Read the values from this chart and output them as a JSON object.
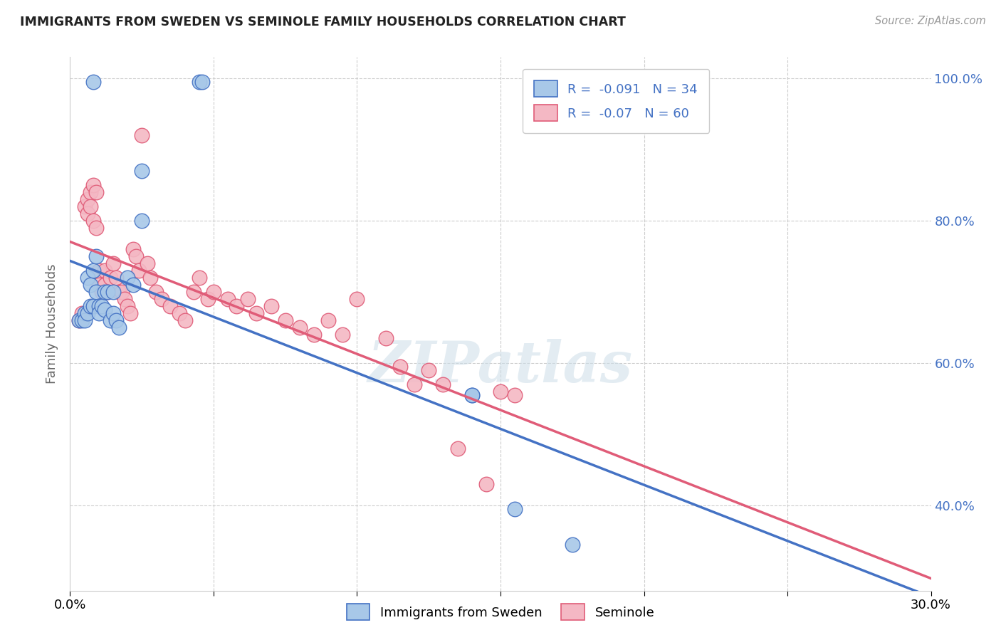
{
  "title": "IMMIGRANTS FROM SWEDEN VS SEMINOLE FAMILY HOUSEHOLDS CORRELATION CHART",
  "source": "Source: ZipAtlas.com",
  "xlabel_blue": "Immigrants from Sweden",
  "xlabel_pink": "Seminole",
  "ylabel": "Family Households",
  "xmin": 0.0,
  "xmax": 0.3,
  "ymin": 0.28,
  "ymax": 1.03,
  "yticks": [
    0.4,
    0.6,
    0.8,
    1.0
  ],
  "xticks": [
    0.0,
    0.05,
    0.1,
    0.15,
    0.2,
    0.25,
    0.3
  ],
  "xtick_labels": [
    "0.0%",
    "",
    "",
    "",
    "",
    "",
    "30.0%"
  ],
  "ytick_labels_right": [
    "40.0%",
    "60.0%",
    "80.0%",
    "100.0%"
  ],
  "R_blue": -0.091,
  "N_blue": 34,
  "R_pink": -0.07,
  "N_pink": 60,
  "blue_color": "#a8c8e8",
  "pink_color": "#f4b8c4",
  "blue_line_color": "#4472c4",
  "pink_line_color": "#e05c78",
  "title_color": "#222222",
  "right_axis_color": "#4472c4",
  "watermark": "ZIPatlas",
  "blue_scatter_x": [
    0.008,
    0.025,
    0.045,
    0.046,
    0.003,
    0.004,
    0.005,
    0.005,
    0.006,
    0.006,
    0.007,
    0.007,
    0.008,
    0.008,
    0.009,
    0.009,
    0.01,
    0.01,
    0.011,
    0.012,
    0.012,
    0.013,
    0.014,
    0.015,
    0.015,
    0.016,
    0.017,
    0.02,
    0.022,
    0.025,
    0.14,
    0.14,
    0.155,
    0.175
  ],
  "blue_scatter_y": [
    0.995,
    0.87,
    0.995,
    0.995,
    0.66,
    0.66,
    0.67,
    0.66,
    0.72,
    0.67,
    0.71,
    0.68,
    0.73,
    0.68,
    0.75,
    0.7,
    0.68,
    0.67,
    0.68,
    0.7,
    0.675,
    0.7,
    0.66,
    0.7,
    0.67,
    0.66,
    0.65,
    0.72,
    0.71,
    0.8,
    0.555,
    0.555,
    0.395,
    0.345
  ],
  "pink_scatter_x": [
    0.003,
    0.004,
    0.005,
    0.006,
    0.006,
    0.007,
    0.007,
    0.008,
    0.008,
    0.009,
    0.009,
    0.01,
    0.01,
    0.011,
    0.012,
    0.012,
    0.013,
    0.014,
    0.015,
    0.016,
    0.017,
    0.018,
    0.019,
    0.02,
    0.021,
    0.022,
    0.023,
    0.024,
    0.025,
    0.027,
    0.028,
    0.03,
    0.032,
    0.035,
    0.038,
    0.04,
    0.043,
    0.045,
    0.048,
    0.05,
    0.055,
    0.058,
    0.062,
    0.065,
    0.07,
    0.075,
    0.08,
    0.085,
    0.09,
    0.095,
    0.1,
    0.11,
    0.115,
    0.12,
    0.125,
    0.13,
    0.135,
    0.145,
    0.15,
    0.155
  ],
  "pink_scatter_y": [
    0.66,
    0.67,
    0.82,
    0.83,
    0.81,
    0.84,
    0.82,
    0.85,
    0.8,
    0.84,
    0.79,
    0.73,
    0.71,
    0.7,
    0.73,
    0.71,
    0.7,
    0.72,
    0.74,
    0.72,
    0.7,
    0.7,
    0.69,
    0.68,
    0.67,
    0.76,
    0.75,
    0.73,
    0.92,
    0.74,
    0.72,
    0.7,
    0.69,
    0.68,
    0.67,
    0.66,
    0.7,
    0.72,
    0.69,
    0.7,
    0.69,
    0.68,
    0.69,
    0.67,
    0.68,
    0.66,
    0.65,
    0.64,
    0.66,
    0.64,
    0.69,
    0.635,
    0.595,
    0.57,
    0.59,
    0.57,
    0.48,
    0.43,
    0.56,
    0.555
  ]
}
